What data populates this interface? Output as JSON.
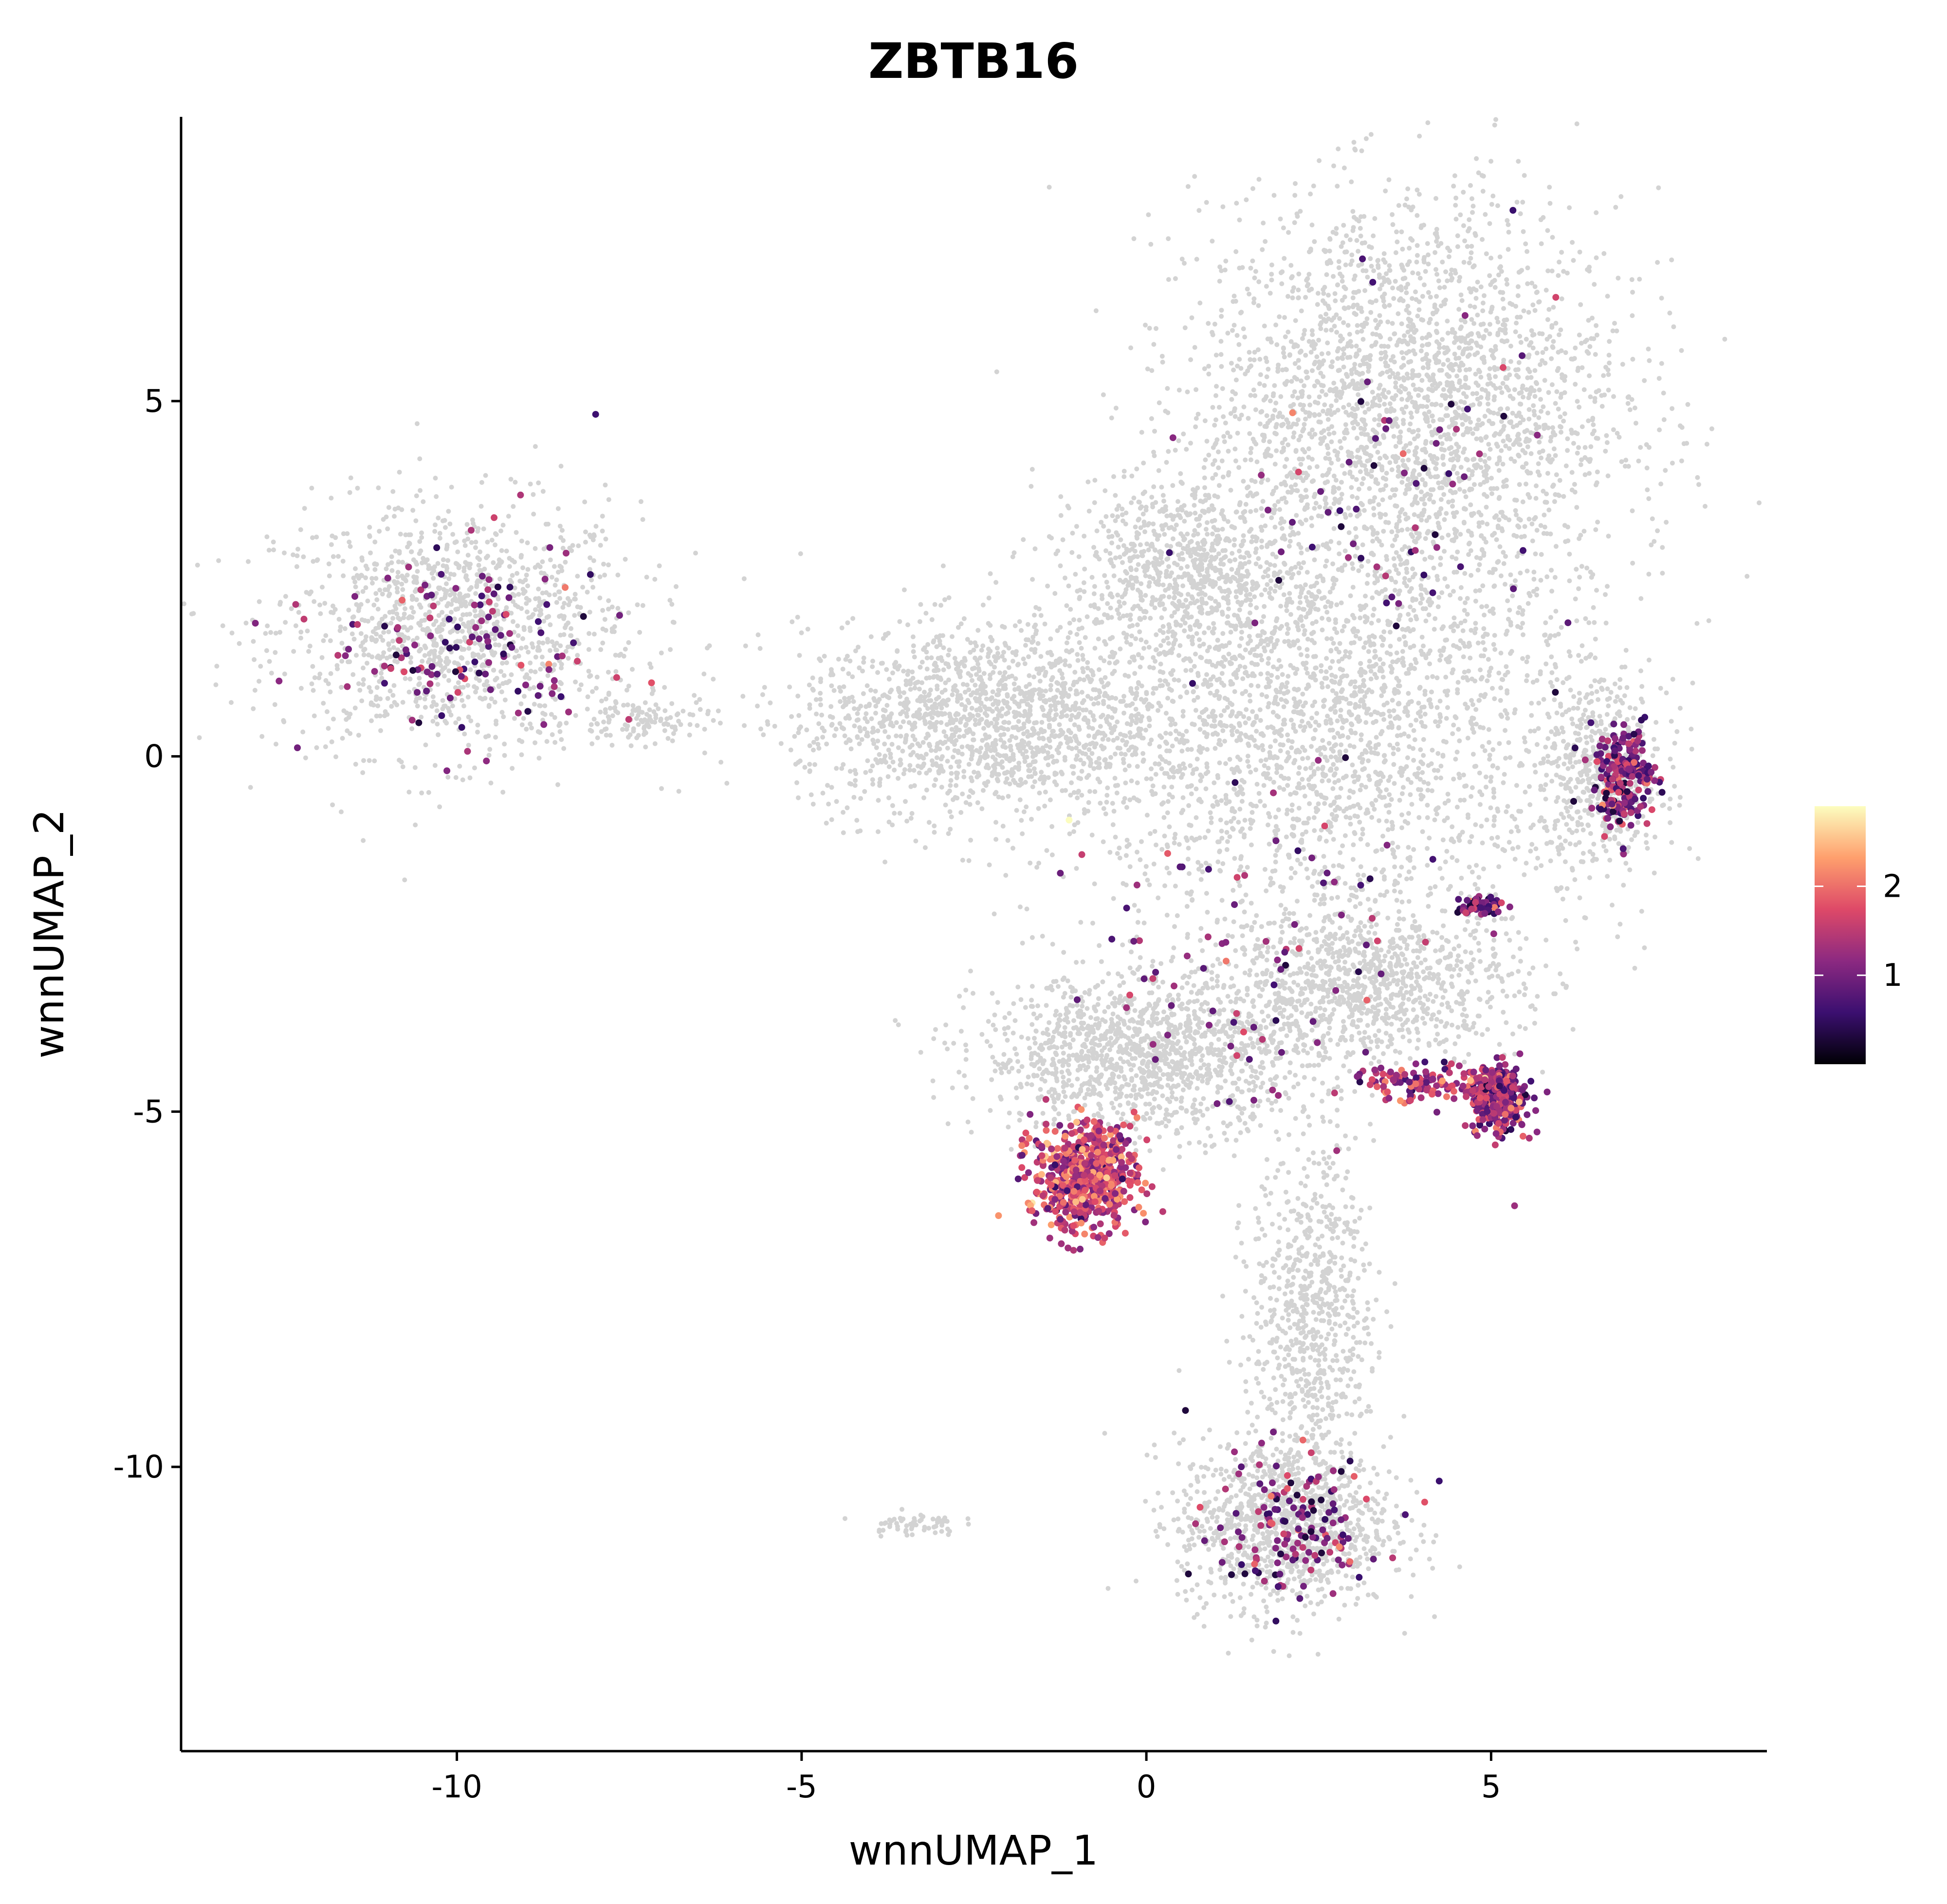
{
  "chart_data": {
    "type": "scatter",
    "title": "ZBTB16",
    "xlabel": "wnnUMAP_1",
    "ylabel": "wnnUMAP_2",
    "xlim": [
      -14,
      9
    ],
    "ylim": [
      -14,
      9
    ],
    "x_ticks": [
      -10,
      -5,
      0,
      5
    ],
    "y_ticks": [
      -10,
      -5,
      0,
      5
    ],
    "x_tick_labels": [
      "-10",
      "-5",
      "0",
      "5"
    ],
    "y_tick_labels": [
      "-10",
      "-5",
      "0",
      "5"
    ],
    "grid": false,
    "background_color": "#d3d3d3",
    "colorbar": {
      "placement": "right",
      "range": [
        0,
        2.9
      ],
      "ticks": [
        1,
        2
      ],
      "tick_labels": [
        "1",
        "2"
      ],
      "colors": [
        "#000004",
        "#3b0f70",
        "#8c2981",
        "#de4968",
        "#fe9f6d",
        "#fcfdbf"
      ]
    },
    "background_clusters": [
      {
        "name": "left-cluster",
        "cx": -10.0,
        "cy": 1.8,
        "rx": 2.4,
        "ry": 1.6,
        "n": 1300
      },
      {
        "name": "left-tail",
        "cx": -7.3,
        "cy": 0.5,
        "rx": 0.9,
        "ry": 0.3,
        "n": 120
      },
      {
        "name": "top-right-mass",
        "cx": 3.8,
        "cy": 5.0,
        "rx": 2.8,
        "ry": 2.6,
        "n": 2600
      },
      {
        "name": "middle-body",
        "cx": 2.5,
        "cy": 0.5,
        "rx": 3.6,
        "ry": 2.8,
        "n": 2600
      },
      {
        "name": "left-arm",
        "cx": -2.4,
        "cy": 0.5,
        "rx": 2.4,
        "ry": 1.2,
        "n": 1500
      },
      {
        "name": "upper-left-bridge",
        "cx": 0.5,
        "cy": 2.6,
        "rx": 1.4,
        "ry": 1.2,
        "n": 700
      },
      {
        "name": "lower-diagonal",
        "cx": 0.0,
        "cy": -4.2,
        "rx": 2.2,
        "ry": 1.0,
        "n": 1400
      },
      {
        "name": "lower-right-band",
        "cx": 3.2,
        "cy": -3.2,
        "rx": 2.0,
        "ry": 1.0,
        "n": 1000
      },
      {
        "name": "lower-stem",
        "cx": 2.4,
        "cy": -7.8,
        "rx": 0.8,
        "ry": 2.0,
        "n": 700
      },
      {
        "name": "bottom-cluster",
        "cx": 2.0,
        "cy": -10.8,
        "rx": 1.4,
        "ry": 1.1,
        "n": 1100
      },
      {
        "name": "small-island",
        "cx": -3.4,
        "cy": -10.8,
        "rx": 0.6,
        "ry": 0.15,
        "n": 60
      },
      {
        "name": "right-edge",
        "cx": 6.6,
        "cy": -0.3,
        "rx": 0.8,
        "ry": 1.2,
        "n": 500
      }
    ],
    "expression_clusters": [
      {
        "name": "left-cluster-expr",
        "cx": -9.9,
        "cy": 1.6,
        "rx": 2.0,
        "ry": 1.5,
        "n": 140,
        "mean": 1.0
      },
      {
        "name": "bottom-left-hotspot",
        "cx": -0.9,
        "cy": -5.9,
        "rx": 0.75,
        "ry": 0.75,
        "n": 650,
        "mean": 1.6
      },
      {
        "name": "right-hotspot",
        "cx": 5.1,
        "cy": -4.8,
        "rx": 0.4,
        "ry": 0.45,
        "n": 380,
        "mean": 1.2
      },
      {
        "name": "right-band-expr",
        "cx": 4.0,
        "cy": -4.6,
        "rx": 1.0,
        "ry": 0.25,
        "n": 120,
        "mean": 1.4
      },
      {
        "name": "right-edge-expr",
        "cx": 6.9,
        "cy": -0.3,
        "rx": 0.45,
        "ry": 0.7,
        "n": 220,
        "mean": 1.1
      },
      {
        "name": "small-right-blob",
        "cx": 4.9,
        "cy": -2.1,
        "rx": 0.3,
        "ry": 0.15,
        "n": 60,
        "mean": 0.9
      },
      {
        "name": "bottom-cluster-expr",
        "cx": 2.1,
        "cy": -10.8,
        "rx": 1.3,
        "ry": 1.0,
        "n": 150,
        "mean": 1.0
      },
      {
        "name": "sparse-upper",
        "cx": 3.4,
        "cy": 3.6,
        "rx": 2.6,
        "ry": 3.0,
        "n": 70,
        "mean": 0.9
      },
      {
        "name": "sparse-middle",
        "cx": 1.5,
        "cy": -3.0,
        "rx": 3.0,
        "ry": 2.2,
        "n": 90,
        "mean": 1.1
      }
    ]
  }
}
